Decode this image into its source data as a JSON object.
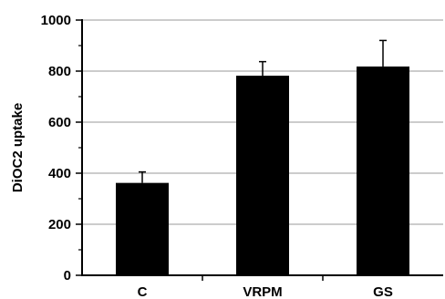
{
  "chart_data": {
    "type": "bar",
    "title": "",
    "xlabel": "",
    "ylabel": "DiOC2 uptake",
    "categories": [
      "C",
      "VRPM",
      "GS"
    ],
    "values": [
      362,
      782,
      818
    ],
    "error_plus": [
      43,
      55,
      102
    ],
    "ylim": [
      0,
      1000
    ],
    "yticks": [
      0,
      200,
      400,
      600,
      800,
      1000
    ],
    "ytick_labels": [
      "0",
      "200",
      "400",
      "600",
      "800",
      "1000"
    ],
    "grid": true,
    "legend": "none",
    "bar_color": "#000000",
    "grid_color": "#999999"
  }
}
